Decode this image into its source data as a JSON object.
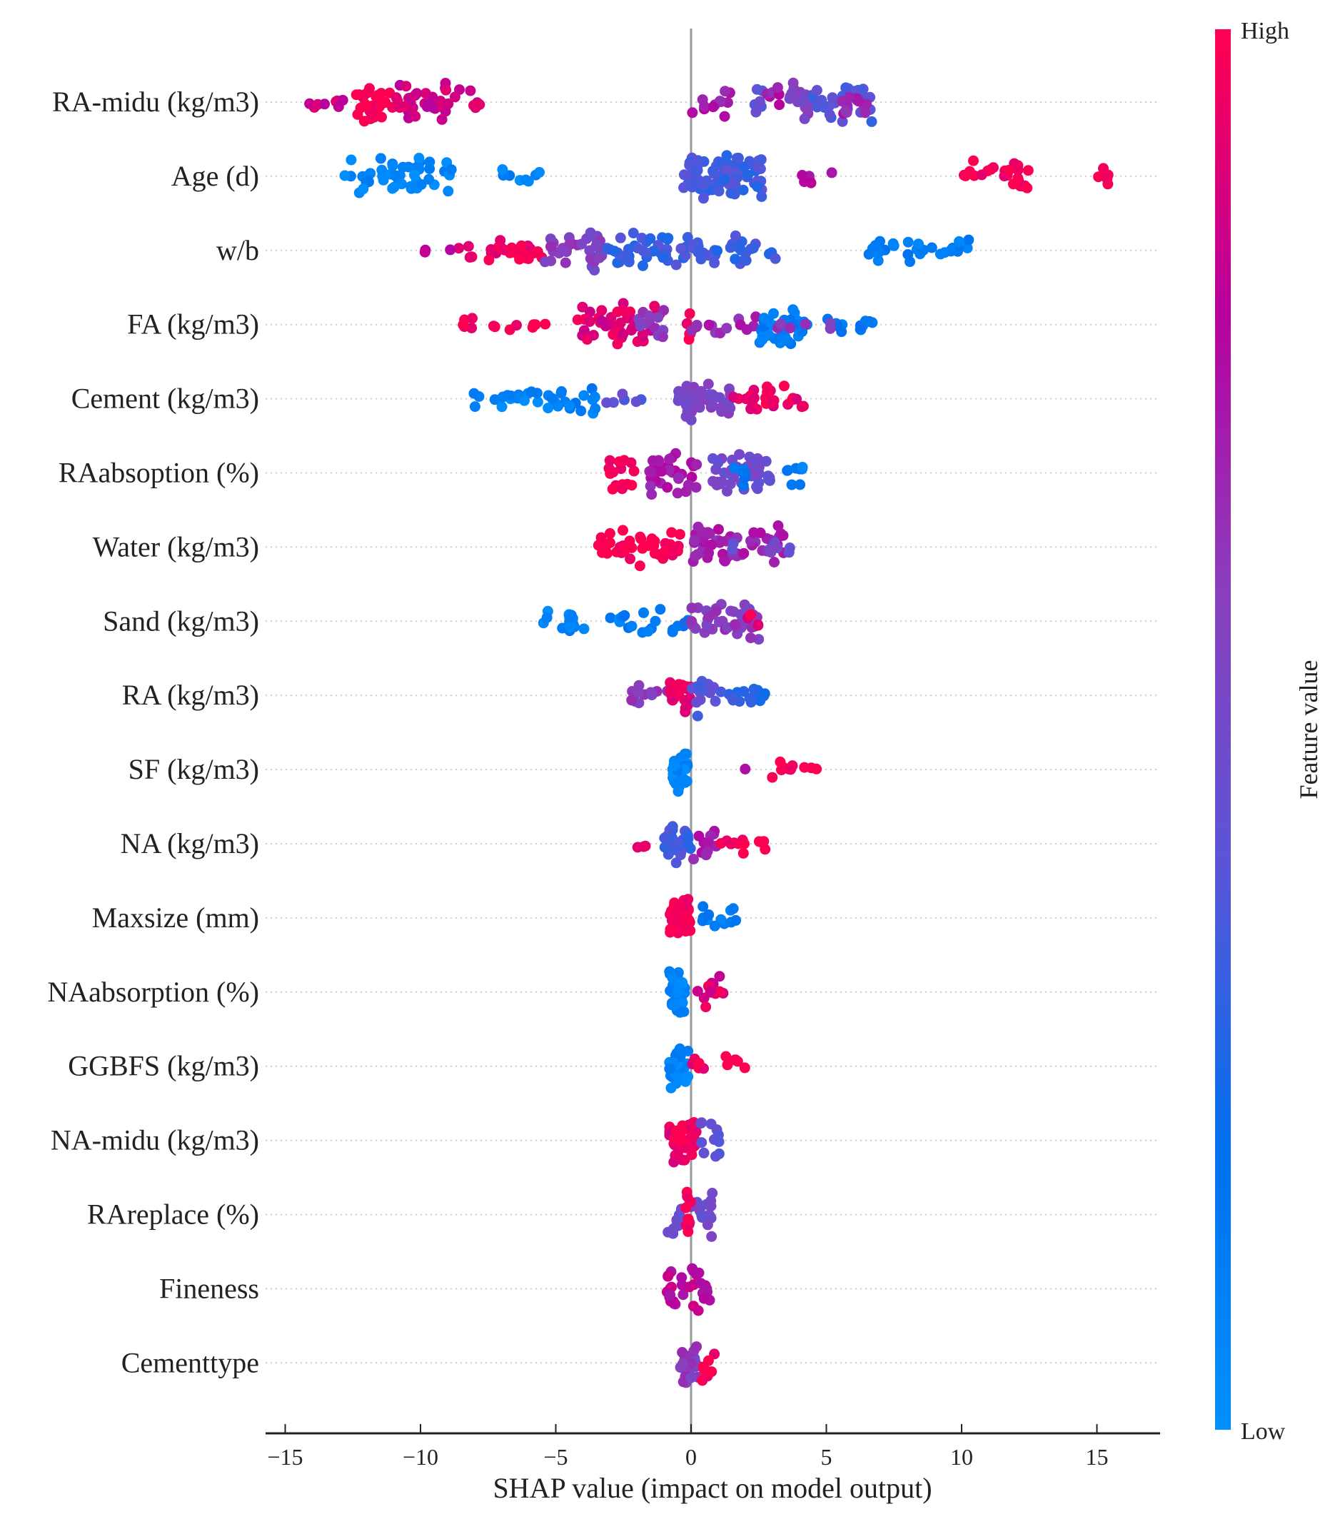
{
  "chart_data": {
    "type": "scatter",
    "subtype": "shap-beeswarm",
    "xlabel": "SHAP value (impact on model output)",
    "xlim": [
      -15.5,
      17.2
    ],
    "xticks": [
      -15,
      -10,
      -5,
      0,
      5,
      10,
      15
    ],
    "xtick_labels": [
      "−15",
      "−10",
      "−5",
      "0",
      "5",
      "10",
      "15"
    ],
    "colorbar": {
      "label": "Feature value",
      "high": "High",
      "low": "Low",
      "colors": [
        "#0090ff",
        "#0070ee",
        "#5a55d8",
        "#8a3fbc",
        "#b8009e",
        "#ff0050"
      ]
    },
    "cluster_format": [
      "shap_min",
      "shap_max",
      "feature_value_0to1",
      "point_count"
    ],
    "features": [
      {
        "name": "RA-midu (kg/m3)",
        "clusters": [
          [
            -14.3,
            -12.5,
            0.85,
            8
          ],
          [
            -12.5,
            -11,
            1,
            30
          ],
          [
            -11,
            -8.5,
            0.85,
            35
          ],
          [
            -8.3,
            -7.8,
            0.9,
            5
          ],
          [
            0,
            0.5,
            0.75,
            4
          ],
          [
            0.8,
            1.5,
            0.72,
            8
          ],
          [
            2.3,
            2.8,
            0.45,
            6
          ],
          [
            2.8,
            3.3,
            0.72,
            6
          ],
          [
            3.5,
            4.5,
            0.55,
            20
          ],
          [
            4.5,
            6.7,
            0.38,
            30
          ],
          [
            5.5,
            6.5,
            0.7,
            12
          ]
        ]
      },
      {
        "name": "Age (d)",
        "clusters": [
          [
            -12.8,
            -11.8,
            0.08,
            12
          ],
          [
            -11.5,
            -8.8,
            0.08,
            35
          ],
          [
            -7,
            -5.5,
            0.08,
            8
          ],
          [
            -0.3,
            2.7,
            0.35,
            80
          ],
          [
            4,
            4.6,
            0.75,
            5
          ],
          [
            5.2,
            5.2,
            0.8,
            1
          ],
          [
            10,
            12.5,
            1,
            25
          ],
          [
            15,
            15.6,
            1,
            6
          ]
        ]
      },
      {
        "name": "w/b",
        "clusters": [
          [
            -10,
            -8.5,
            0.85,
            4
          ],
          [
            -8.5,
            -5.5,
            0.95,
            25
          ],
          [
            -5.5,
            -3.2,
            0.6,
            25
          ],
          [
            -3.8,
            -3.3,
            0.55,
            12
          ],
          [
            -3.2,
            0,
            0.33,
            40
          ],
          [
            0,
            3.2,
            0.33,
            30
          ],
          [
            6.3,
            10.3,
            0.12,
            30
          ]
        ]
      },
      {
        "name": "FA (kg/m3)",
        "clusters": [
          [
            -8.5,
            -8,
            1,
            5
          ],
          [
            -7.5,
            -5.3,
            1,
            8
          ],
          [
            -4.2,
            -1,
            0.9,
            45
          ],
          [
            -2,
            -1,
            0.62,
            12
          ],
          [
            -0.2,
            0,
            1,
            6
          ],
          [
            0,
            2.5,
            0.68,
            15
          ],
          [
            2.5,
            4,
            0.12,
            35
          ],
          [
            4,
            6.8,
            0.15,
            15
          ],
          [
            3,
            5.5,
            0.6,
            6
          ]
        ]
      },
      {
        "name": "Cement (kg/m3)",
        "clusters": [
          [
            -8.1,
            -4.5,
            0.08,
            25
          ],
          [
            -4.5,
            -3.5,
            0.12,
            10
          ],
          [
            -3.3,
            -1.8,
            0.4,
            6
          ],
          [
            -0.5,
            1.5,
            0.55,
            50
          ],
          [
            1.5,
            4.3,
            0.95,
            25
          ]
        ]
      },
      {
        "name": "RAabsoption (%)",
        "clusters": [
          [
            -3.1,
            -2,
            1,
            15
          ],
          [
            -1.6,
            0.3,
            0.72,
            35
          ],
          [
            0.8,
            3,
            0.48,
            45
          ],
          [
            1.5,
            2,
            0.15,
            6
          ],
          [
            3.5,
            4.5,
            0.1,
            8
          ]
        ]
      },
      {
        "name": "Water (kg/m3)",
        "clusters": [
          [
            -3.5,
            -0.4,
            1,
            45
          ],
          [
            -0.1,
            3.5,
            0.7,
            55
          ],
          [
            1.5,
            3.8,
            0.5,
            8
          ]
        ]
      },
      {
        "name": "Sand (kg/m3)",
        "clusters": [
          [
            -5.5,
            -3.8,
            0.08,
            14
          ],
          [
            -3,
            -1,
            0.12,
            15
          ],
          [
            -0.8,
            0,
            0.2,
            6
          ],
          [
            0,
            2.5,
            0.6,
            45
          ],
          [
            2,
            2.5,
            0.95,
            4
          ]
        ]
      },
      {
        "name": "RA (kg/m3)",
        "clusters": [
          [
            -2.2,
            -0.8,
            0.62,
            12
          ],
          [
            -0.8,
            0,
            0.95,
            20
          ],
          [
            0,
            1,
            0.4,
            15
          ],
          [
            1,
            2.8,
            0.3,
            15
          ]
        ]
      },
      {
        "name": "SF (kg/m3)",
        "clusters": [
          [
            -0.7,
            -0.1,
            0.08,
            35
          ],
          [
            2,
            2,
            0.75,
            1
          ],
          [
            2.9,
            4.7,
            1,
            10
          ]
        ]
      },
      {
        "name": "NA (kg/m3)",
        "clusters": [
          [
            -2,
            -1.5,
            0.9,
            3
          ],
          [
            -1,
            0,
            0.35,
            30
          ],
          [
            0,
            1,
            0.7,
            12
          ],
          [
            1,
            2.8,
            1,
            12
          ]
        ]
      },
      {
        "name": "Maxsize (mm)",
        "clusters": [
          [
            -0.8,
            0,
            1,
            45
          ],
          [
            0.4,
            1.8,
            0.1,
            12
          ]
        ]
      },
      {
        "name": "NAabsorption (%)",
        "clusters": [
          [
            -0.8,
            -0.2,
            0.08,
            40
          ],
          [
            0.2,
            1.2,
            0.9,
            12
          ]
        ]
      },
      {
        "name": "GGBFS (kg/m3)",
        "clusters": [
          [
            -0.8,
            -0.1,
            0.08,
            40
          ],
          [
            0,
            0.8,
            0.95,
            5
          ],
          [
            1.2,
            2,
            1,
            6
          ]
        ]
      },
      {
        "name": "NA-midu (kg/m3)",
        "clusters": [
          [
            -0.8,
            0.2,
            0.95,
            45
          ],
          [
            0.3,
            1.1,
            0.4,
            12
          ]
        ]
      },
      {
        "name": "RAreplace (%)",
        "clusters": [
          [
            -0.9,
            0.8,
            0.5,
            30
          ],
          [
            -0.2,
            0,
            1,
            8
          ]
        ]
      },
      {
        "name": "Fineness",
        "clusters": [
          [
            -0.9,
            0.7,
            0.8,
            30
          ]
        ]
      },
      {
        "name": "Cementtype",
        "clusters": [
          [
            -0.4,
            0.3,
            0.6,
            30
          ],
          [
            0.4,
            1,
            1,
            8
          ]
        ]
      }
    ]
  }
}
